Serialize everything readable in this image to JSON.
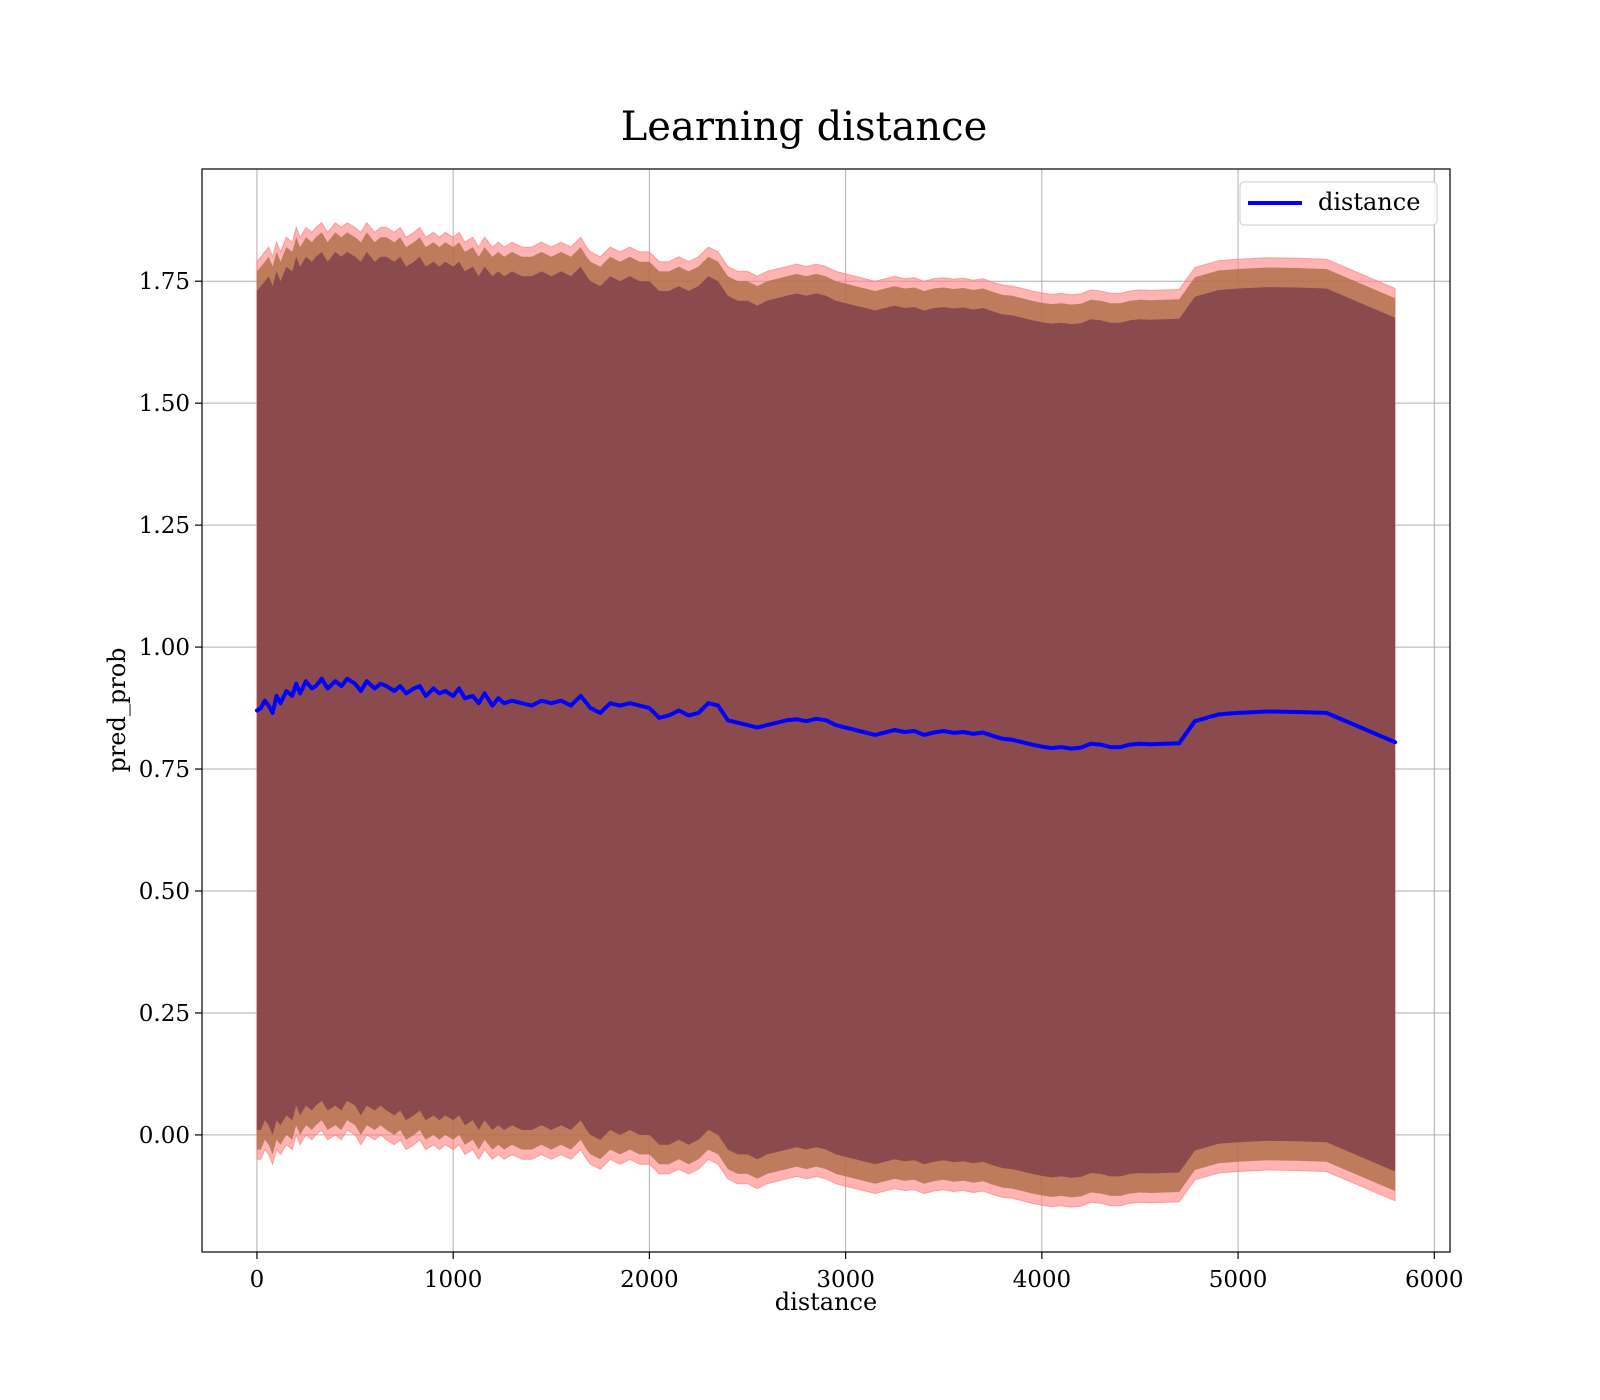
{
  "chart_data": {
    "type": "line",
    "title": "Learning distance",
    "xlabel": "distance",
    "ylabel": "pred_prob",
    "xlim": [
      -280,
      6080
    ],
    "ylim": [
      -0.24,
      1.98
    ],
    "xticks": [
      0,
      1000,
      2000,
      3000,
      4000,
      5000,
      6000
    ],
    "xtick_labels": [
      "0",
      "1000",
      "2000",
      "3000",
      "4000",
      "5000",
      "6000"
    ],
    "yticks": [
      0.0,
      0.25,
      0.5,
      0.75,
      1.0,
      1.25,
      1.5,
      1.75
    ],
    "ytick_labels": [
      "0.00",
      "0.25",
      "0.50",
      "0.75",
      "1.00",
      "1.25",
      "1.50",
      "1.75"
    ],
    "grid": true,
    "legend": {
      "position": "upper-right",
      "entries": [
        "distance"
      ]
    },
    "colors": {
      "line": "#0000ff",
      "outer_band": "#ff8080",
      "mid_band": "#a86a3f",
      "inner_band": "#7a3a4a"
    },
    "series": [
      {
        "name": "distance",
        "x": [
          0,
          20,
          40,
          60,
          80,
          100,
          120,
          150,
          180,
          200,
          220,
          250,
          280,
          300,
          330,
          360,
          400,
          430,
          460,
          500,
          530,
          560,
          600,
          630,
          660,
          700,
          730,
          760,
          800,
          830,
          860,
          900,
          930,
          960,
          1000,
          1030,
          1060,
          1100,
          1130,
          1160,
          1200,
          1230,
          1260,
          1300,
          1350,
          1400,
          1450,
          1500,
          1550,
          1600,
          1650,
          1680,
          1700,
          1750,
          1800,
          1850,
          1900,
          1950,
          2000,
          2050,
          2100,
          2150,
          2200,
          2250,
          2300,
          2350,
          2400,
          2450,
          2500,
          2550,
          2600,
          2650,
          2700,
          2750,
          2800,
          2850,
          2900,
          2950,
          3000,
          3050,
          3100,
          3150,
          3200,
          3250,
          3300,
          3350,
          3400,
          3450,
          3500,
          3550,
          3600,
          3650,
          3700,
          3750,
          3800,
          3850,
          3900,
          3950,
          4000,
          4050,
          4100,
          4150,
          4200,
          4250,
          4300,
          4350,
          4400,
          4450,
          4500,
          4550,
          4700,
          4780,
          4900,
          5000,
          5150,
          5300,
          5450,
          5800
        ],
        "values": [
          0.87,
          0.875,
          0.89,
          0.88,
          0.865,
          0.9,
          0.885,
          0.91,
          0.9,
          0.925,
          0.905,
          0.93,
          0.915,
          0.92,
          0.935,
          0.915,
          0.93,
          0.92,
          0.935,
          0.925,
          0.91,
          0.93,
          0.915,
          0.925,
          0.92,
          0.91,
          0.92,
          0.905,
          0.915,
          0.92,
          0.9,
          0.915,
          0.905,
          0.91,
          0.9,
          0.915,
          0.895,
          0.9,
          0.885,
          0.905,
          0.88,
          0.895,
          0.885,
          0.89,
          0.885,
          0.88,
          0.89,
          0.885,
          0.89,
          0.88,
          0.9,
          0.885,
          0.875,
          0.865,
          0.885,
          0.88,
          0.885,
          0.88,
          0.875,
          0.855,
          0.86,
          0.87,
          0.86,
          0.865,
          0.885,
          0.88,
          0.85,
          0.845,
          0.84,
          0.835,
          0.84,
          0.845,
          0.85,
          0.852,
          0.848,
          0.853,
          0.85,
          0.84,
          0.835,
          0.83,
          0.825,
          0.82,
          0.825,
          0.83,
          0.826,
          0.828,
          0.82,
          0.825,
          0.828,
          0.824,
          0.826,
          0.822,
          0.825,
          0.818,
          0.812,
          0.81,
          0.805,
          0.8,
          0.796,
          0.793,
          0.795,
          0.792,
          0.794,
          0.802,
          0.8,
          0.795,
          0.795,
          0.8,
          0.802,
          0.801,
          0.803,
          0.848,
          0.862,
          0.865,
          0.868,
          0.867,
          0.865,
          0.805
        ],
        "band_outer_upper": [
          1.79,
          1.8,
          1.81,
          1.82,
          1.8,
          1.83,
          1.81,
          1.84,
          1.83,
          1.86,
          1.84,
          1.86,
          1.85,
          1.86,
          1.87,
          1.85,
          1.87,
          1.86,
          1.87,
          1.86,
          1.85,
          1.87,
          1.85,
          1.86,
          1.86,
          1.85,
          1.86,
          1.84,
          1.85,
          1.86,
          1.84,
          1.85,
          1.84,
          1.85,
          1.84,
          1.85,
          1.83,
          1.84,
          1.82,
          1.84,
          1.82,
          1.83,
          1.82,
          1.83,
          1.82,
          1.82,
          1.83,
          1.82,
          1.83,
          1.82,
          1.84,
          1.82,
          1.81,
          1.8,
          1.82,
          1.81,
          1.82,
          1.81,
          1.81,
          1.79,
          1.79,
          1.8,
          1.79,
          1.8,
          1.82,
          1.81,
          1.78,
          1.77,
          1.77,
          1.76,
          1.77,
          1.775,
          1.78,
          1.785,
          1.78,
          1.785,
          1.78,
          1.77,
          1.765,
          1.76,
          1.755,
          1.75,
          1.755,
          1.76,
          1.755,
          1.757,
          1.75,
          1.755,
          1.757,
          1.754,
          1.756,
          1.752,
          1.755,
          1.748,
          1.742,
          1.74,
          1.735,
          1.73,
          1.726,
          1.723,
          1.725,
          1.722,
          1.724,
          1.732,
          1.73,
          1.725,
          1.725,
          1.73,
          1.732,
          1.731,
          1.733,
          1.778,
          1.792,
          1.795,
          1.798,
          1.797,
          1.795,
          1.735
        ],
        "band_outer_lower": [
          -0.05,
          -0.05,
          -0.03,
          -0.04,
          -0.06,
          -0.03,
          -0.04,
          -0.02,
          -0.03,
          0.0,
          -0.02,
          0.0,
          -0.01,
          0.0,
          0.01,
          -0.01,
          0.0,
          -0.01,
          0.01,
          0.0,
          -0.02,
          0.0,
          -0.01,
          0.0,
          -0.01,
          -0.02,
          -0.01,
          -0.03,
          -0.02,
          -0.01,
          -0.03,
          -0.02,
          -0.03,
          -0.02,
          -0.03,
          -0.02,
          -0.04,
          -0.03,
          -0.05,
          -0.03,
          -0.05,
          -0.04,
          -0.05,
          -0.04,
          -0.05,
          -0.05,
          -0.04,
          -0.05,
          -0.04,
          -0.05,
          -0.03,
          -0.05,
          -0.06,
          -0.07,
          -0.05,
          -0.06,
          -0.05,
          -0.06,
          -0.06,
          -0.08,
          -0.08,
          -0.07,
          -0.08,
          -0.07,
          -0.05,
          -0.06,
          -0.09,
          -0.1,
          -0.1,
          -0.11,
          -0.1,
          -0.095,
          -0.09,
          -0.085,
          -0.09,
          -0.085,
          -0.09,
          -0.1,
          -0.105,
          -0.11,
          -0.115,
          -0.12,
          -0.115,
          -0.11,
          -0.114,
          -0.112,
          -0.12,
          -0.115,
          -0.112,
          -0.116,
          -0.114,
          -0.118,
          -0.115,
          -0.122,
          -0.128,
          -0.13,
          -0.135,
          -0.14,
          -0.144,
          -0.147,
          -0.145,
          -0.148,
          -0.146,
          -0.138,
          -0.14,
          -0.145,
          -0.145,
          -0.14,
          -0.138,
          -0.139,
          -0.137,
          -0.092,
          -0.078,
          -0.075,
          -0.072,
          -0.073,
          -0.075,
          -0.135
        ],
        "band_mid_upper": [
          1.77,
          1.78,
          1.79,
          1.8,
          1.78,
          1.81,
          1.79,
          1.82,
          1.81,
          1.84,
          1.82,
          1.84,
          1.83,
          1.84,
          1.85,
          1.83,
          1.85,
          1.84,
          1.85,
          1.84,
          1.83,
          1.85,
          1.83,
          1.84,
          1.84,
          1.83,
          1.84,
          1.82,
          1.83,
          1.84,
          1.82,
          1.83,
          1.82,
          1.83,
          1.82,
          1.83,
          1.81,
          1.82,
          1.8,
          1.82,
          1.8,
          1.81,
          1.8,
          1.81,
          1.8,
          1.8,
          1.81,
          1.8,
          1.81,
          1.8,
          1.82,
          1.8,
          1.79,
          1.78,
          1.8,
          1.79,
          1.8,
          1.79,
          1.79,
          1.77,
          1.77,
          1.78,
          1.77,
          1.78,
          1.8,
          1.79,
          1.76,
          1.75,
          1.75,
          1.74,
          1.75,
          1.755,
          1.76,
          1.765,
          1.76,
          1.765,
          1.76,
          1.75,
          1.745,
          1.74,
          1.735,
          1.73,
          1.735,
          1.74,
          1.735,
          1.737,
          1.73,
          1.735,
          1.737,
          1.734,
          1.736,
          1.732,
          1.735,
          1.728,
          1.722,
          1.72,
          1.715,
          1.71,
          1.706,
          1.703,
          1.705,
          1.702,
          1.704,
          1.712,
          1.71,
          1.705,
          1.705,
          1.71,
          1.712,
          1.711,
          1.713,
          1.758,
          1.772,
          1.775,
          1.778,
          1.777,
          1.775,
          1.715
        ],
        "band_mid_lower": [
          -0.03,
          -0.03,
          -0.01,
          -0.02,
          -0.04,
          -0.01,
          -0.02,
          0.0,
          -0.01,
          0.02,
          0.0,
          0.02,
          0.01,
          0.02,
          0.03,
          0.01,
          0.02,
          0.01,
          0.03,
          0.02,
          0.0,
          0.02,
          0.01,
          0.02,
          0.01,
          0.0,
          0.01,
          -0.01,
          0.0,
          0.01,
          -0.01,
          0.0,
          -0.01,
          0.0,
          -0.01,
          0.0,
          -0.02,
          -0.01,
          -0.03,
          -0.01,
          -0.03,
          -0.02,
          -0.03,
          -0.02,
          -0.03,
          -0.03,
          -0.02,
          -0.03,
          -0.02,
          -0.03,
          -0.01,
          -0.03,
          -0.04,
          -0.05,
          -0.03,
          -0.04,
          -0.03,
          -0.04,
          -0.04,
          -0.06,
          -0.06,
          -0.05,
          -0.06,
          -0.05,
          -0.03,
          -0.04,
          -0.07,
          -0.08,
          -0.08,
          -0.09,
          -0.08,
          -0.075,
          -0.07,
          -0.065,
          -0.07,
          -0.065,
          -0.07,
          -0.08,
          -0.085,
          -0.09,
          -0.095,
          -0.1,
          -0.095,
          -0.09,
          -0.094,
          -0.092,
          -0.1,
          -0.095,
          -0.092,
          -0.096,
          -0.094,
          -0.098,
          -0.095,
          -0.102,
          -0.108,
          -0.11,
          -0.115,
          -0.12,
          -0.124,
          -0.127,
          -0.125,
          -0.128,
          -0.126,
          -0.118,
          -0.12,
          -0.125,
          -0.125,
          -0.12,
          -0.118,
          -0.119,
          -0.117,
          -0.072,
          -0.058,
          -0.055,
          -0.052,
          -0.053,
          -0.055,
          -0.115
        ],
        "band_inner_upper": [
          1.73,
          1.74,
          1.75,
          1.76,
          1.74,
          1.77,
          1.75,
          1.78,
          1.77,
          1.8,
          1.78,
          1.8,
          1.79,
          1.8,
          1.81,
          1.79,
          1.81,
          1.8,
          1.81,
          1.8,
          1.79,
          1.81,
          1.79,
          1.8,
          1.8,
          1.79,
          1.8,
          1.78,
          1.79,
          1.8,
          1.78,
          1.79,
          1.78,
          1.79,
          1.78,
          1.79,
          1.77,
          1.78,
          1.76,
          1.78,
          1.76,
          1.77,
          1.76,
          1.77,
          1.76,
          1.76,
          1.77,
          1.76,
          1.77,
          1.76,
          1.78,
          1.76,
          1.75,
          1.74,
          1.76,
          1.75,
          1.76,
          1.75,
          1.75,
          1.73,
          1.73,
          1.74,
          1.73,
          1.74,
          1.76,
          1.75,
          1.72,
          1.71,
          1.71,
          1.7,
          1.71,
          1.715,
          1.72,
          1.725,
          1.72,
          1.725,
          1.72,
          1.71,
          1.705,
          1.7,
          1.695,
          1.69,
          1.695,
          1.7,
          1.695,
          1.697,
          1.69,
          1.695,
          1.697,
          1.694,
          1.696,
          1.692,
          1.695,
          1.688,
          1.682,
          1.68,
          1.675,
          1.67,
          1.666,
          1.663,
          1.665,
          1.662,
          1.664,
          1.672,
          1.67,
          1.665,
          1.665,
          1.67,
          1.672,
          1.671,
          1.673,
          1.718,
          1.732,
          1.735,
          1.738,
          1.737,
          1.735,
          1.675
        ],
        "band_inner_lower": [
          0.01,
          0.01,
          0.03,
          0.02,
          0.0,
          0.03,
          0.02,
          0.04,
          0.03,
          0.06,
          0.04,
          0.06,
          0.05,
          0.06,
          0.07,
          0.05,
          0.06,
          0.05,
          0.07,
          0.06,
          0.04,
          0.06,
          0.05,
          0.06,
          0.05,
          0.04,
          0.05,
          0.03,
          0.04,
          0.05,
          0.03,
          0.04,
          0.03,
          0.04,
          0.03,
          0.04,
          0.02,
          0.03,
          0.01,
          0.03,
          0.01,
          0.02,
          0.01,
          0.02,
          0.01,
          0.01,
          0.02,
          0.01,
          0.02,
          0.01,
          0.03,
          0.01,
          0.0,
          -0.01,
          0.01,
          0.0,
          0.01,
          0.0,
          0.0,
          -0.02,
          -0.02,
          -0.01,
          -0.02,
          -0.01,
          0.01,
          0.0,
          -0.03,
          -0.04,
          -0.04,
          -0.05,
          -0.04,
          -0.035,
          -0.03,
          -0.025,
          -0.03,
          -0.025,
          -0.03,
          -0.04,
          -0.045,
          -0.05,
          -0.055,
          -0.06,
          -0.055,
          -0.05,
          -0.054,
          -0.052,
          -0.06,
          -0.055,
          -0.052,
          -0.056,
          -0.054,
          -0.058,
          -0.055,
          -0.062,
          -0.068,
          -0.07,
          -0.075,
          -0.08,
          -0.084,
          -0.087,
          -0.085,
          -0.088,
          -0.086,
          -0.078,
          -0.08,
          -0.085,
          -0.085,
          -0.08,
          -0.078,
          -0.079,
          -0.077,
          -0.032,
          -0.018,
          -0.015,
          -0.012,
          -0.013,
          -0.015,
          -0.075
        ]
      }
    ]
  }
}
